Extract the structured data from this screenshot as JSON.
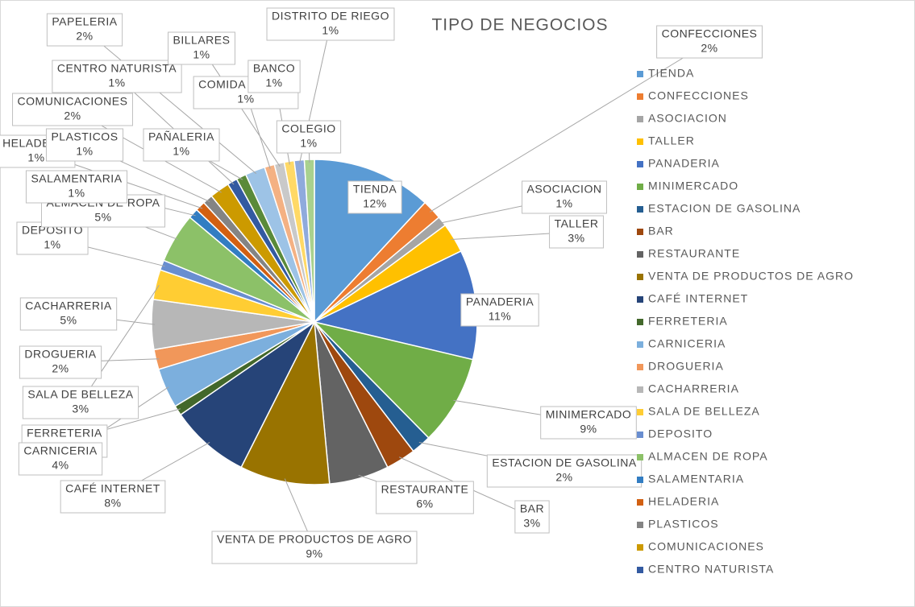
{
  "chart_data": {
    "type": "pie",
    "title": "TIPO DE NEGOCIOS",
    "categories": [
      "TIENDA",
      "CONFECCIONES",
      "ASOCIACION",
      "TALLER",
      "PANADERIA",
      "MINIMERCADO",
      "ESTACION DE GASOLINA",
      "BAR",
      "RESTAURANTE",
      "VENTA DE PRODUCTOS DE AGRO",
      "CAFÉ INTERNET",
      "FERRETERIA",
      "CARNICERIA",
      "DROGUERIA",
      "CACHARRERIA",
      "SALA DE BELLEZA",
      "DEPOSITO",
      "ALMACEN DE ROPA",
      "SALAMENTARIA",
      "HELADERIA",
      "PLASTICOS",
      "COMUNICACIONES",
      "CENTRO NATURISTA",
      "PAÑALERIA",
      "PAPELERIA",
      "COMIDA RAPIDA",
      "BILLARES",
      "BANCO",
      "DISTRITO DE RIEGO",
      "COLEGIO"
    ],
    "values": [
      12,
      2,
      1,
      3,
      11,
      9,
      2,
      3,
      6,
      9,
      8,
      1,
      4,
      2,
      5,
      3,
      1,
      5,
      1,
      1,
      1,
      2,
      1,
      1,
      2,
      1,
      1,
      1,
      1,
      1
    ],
    "value_labels": [
      "12%",
      "2%",
      "1%",
      "3%",
      "11%",
      "9%",
      "2%",
      "3%",
      "6%",
      "9%",
      "8%",
      "1%",
      "4%",
      "2%",
      "5%",
      "3%",
      "1%",
      "5%",
      "1%",
      "1%",
      "1%",
      "2%",
      "1%",
      "1%",
      "2%",
      "1%",
      "1%",
      "1%",
      "1%",
      "1%"
    ],
    "colors": [
      "#5B9BD5",
      "#ED7D31",
      "#A5A5A5",
      "#FFC000",
      "#4472C4",
      "#70AD47",
      "#255E91",
      "#9E480E",
      "#636363",
      "#997300",
      "#264478",
      "#43682B",
      "#7CAFDD",
      "#F1975A",
      "#B7B7B7",
      "#FFCD33",
      "#698ED0",
      "#8CC168",
      "#327DC2",
      "#D26012",
      "#848484",
      "#CC9A00",
      "#335AA1",
      "#5A8A39",
      "#9DC3E6",
      "#F4B183",
      "#C9C9C9",
      "#FFD966",
      "#8FAADC",
      "#A9D18E"
    ],
    "legend": "right"
  }
}
